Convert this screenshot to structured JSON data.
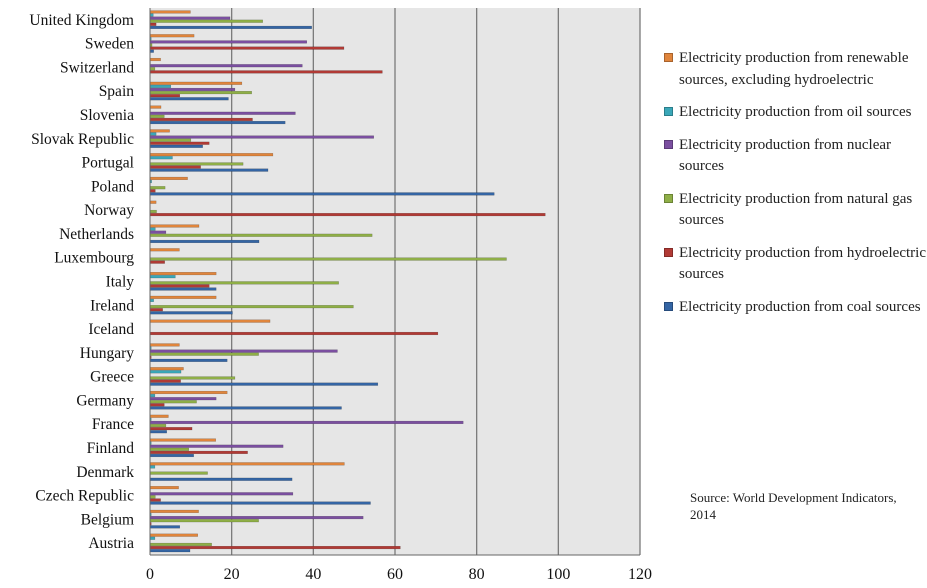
{
  "chart_data": {
    "type": "bar",
    "orientation": "horizontal",
    "categories": [
      "Austria",
      "Belgium",
      "Czech Republic",
      "Denmark",
      "Finland",
      "France",
      "Germany",
      "Greece",
      "Hungary",
      "Iceland",
      "Ireland",
      "Italy",
      "Luxembourg",
      "Netherlands",
      "Norway",
      "Poland",
      "Portugal",
      "Slovak Republic",
      "Slovenia",
      "Spain",
      "Switzerland",
      "Sweden",
      "United Kingdom"
    ],
    "series": [
      {
        "name": "Electricity production from renewable sources, excluding hydroelectric",
        "color": "#e0853c",
        "values": [
          11.7,
          11.9,
          7.0,
          47.6,
          16.1,
          4.5,
          18.9,
          8.2,
          7.2,
          29.4,
          16.2,
          16.2,
          7.2,
          12.0,
          1.5,
          9.2,
          30.1,
          4.8,
          2.7,
          22.5,
          2.6,
          10.8,
          9.9
        ]
      },
      {
        "name": "Electricity production from oil sources",
        "color": "#3aa7b8",
        "values": [
          1.2,
          0.3,
          0.1,
          1.2,
          0.3,
          0.3,
          1.2,
          7.6,
          0.3,
          0.0,
          0.9,
          6.2,
          0.0,
          1.3,
          0.0,
          0.4,
          5.5,
          1.5,
          0.1,
          5.1,
          0.1,
          0.3,
          0.8
        ]
      },
      {
        "name": "Electricity production from nuclear sources",
        "color": "#7b4fa0",
        "values": [
          0.0,
          52.2,
          35.0,
          0.0,
          32.6,
          76.7,
          16.2,
          0.0,
          45.9,
          0.0,
          0.0,
          0.0,
          0.0,
          3.9,
          0.0,
          0.0,
          0.0,
          54.8,
          35.6,
          20.8,
          37.3,
          38.4,
          19.6
        ]
      },
      {
        "name": "Electricity production from natural gas sources",
        "color": "#8faf47",
        "values": [
          15.1,
          26.6,
          1.3,
          14.1,
          9.5,
          3.9,
          11.4,
          20.8,
          26.6,
          0.0,
          49.8,
          46.2,
          87.3,
          54.4,
          1.6,
          3.7,
          22.8,
          10.0,
          3.5,
          24.9,
          1.2,
          0.5,
          27.6
        ]
      },
      {
        "name": "Electricity production from hydroelectric sources",
        "color": "#b13a35",
        "values": [
          61.3,
          0.3,
          2.6,
          0.1,
          23.9,
          10.3,
          3.5,
          7.5,
          0.3,
          70.5,
          3.1,
          14.5,
          3.6,
          0.1,
          96.8,
          1.3,
          12.4,
          14.5,
          25.1,
          7.3,
          56.9,
          47.5,
          1.5
        ]
      },
      {
        "name": "Electricity production from coal sources",
        "color": "#3465a4",
        "values": [
          9.8,
          7.3,
          54.0,
          34.8,
          10.7,
          4.1,
          46.9,
          55.8,
          18.9,
          0.0,
          20.2,
          16.2,
          0.0,
          26.7,
          0.0,
          84.3,
          28.9,
          12.9,
          33.1,
          19.2,
          0.0,
          0.9,
          39.6
        ]
      }
    ],
    "xlim": [
      0,
      120
    ],
    "xticks": [
      "0",
      "20",
      "40",
      "60",
      "80",
      "100",
      "120"
    ],
    "grid": true,
    "legend_position": "right",
    "plot_background": "#e6e6e6",
    "source_note": "Source: World Development Indicators, 2014"
  }
}
